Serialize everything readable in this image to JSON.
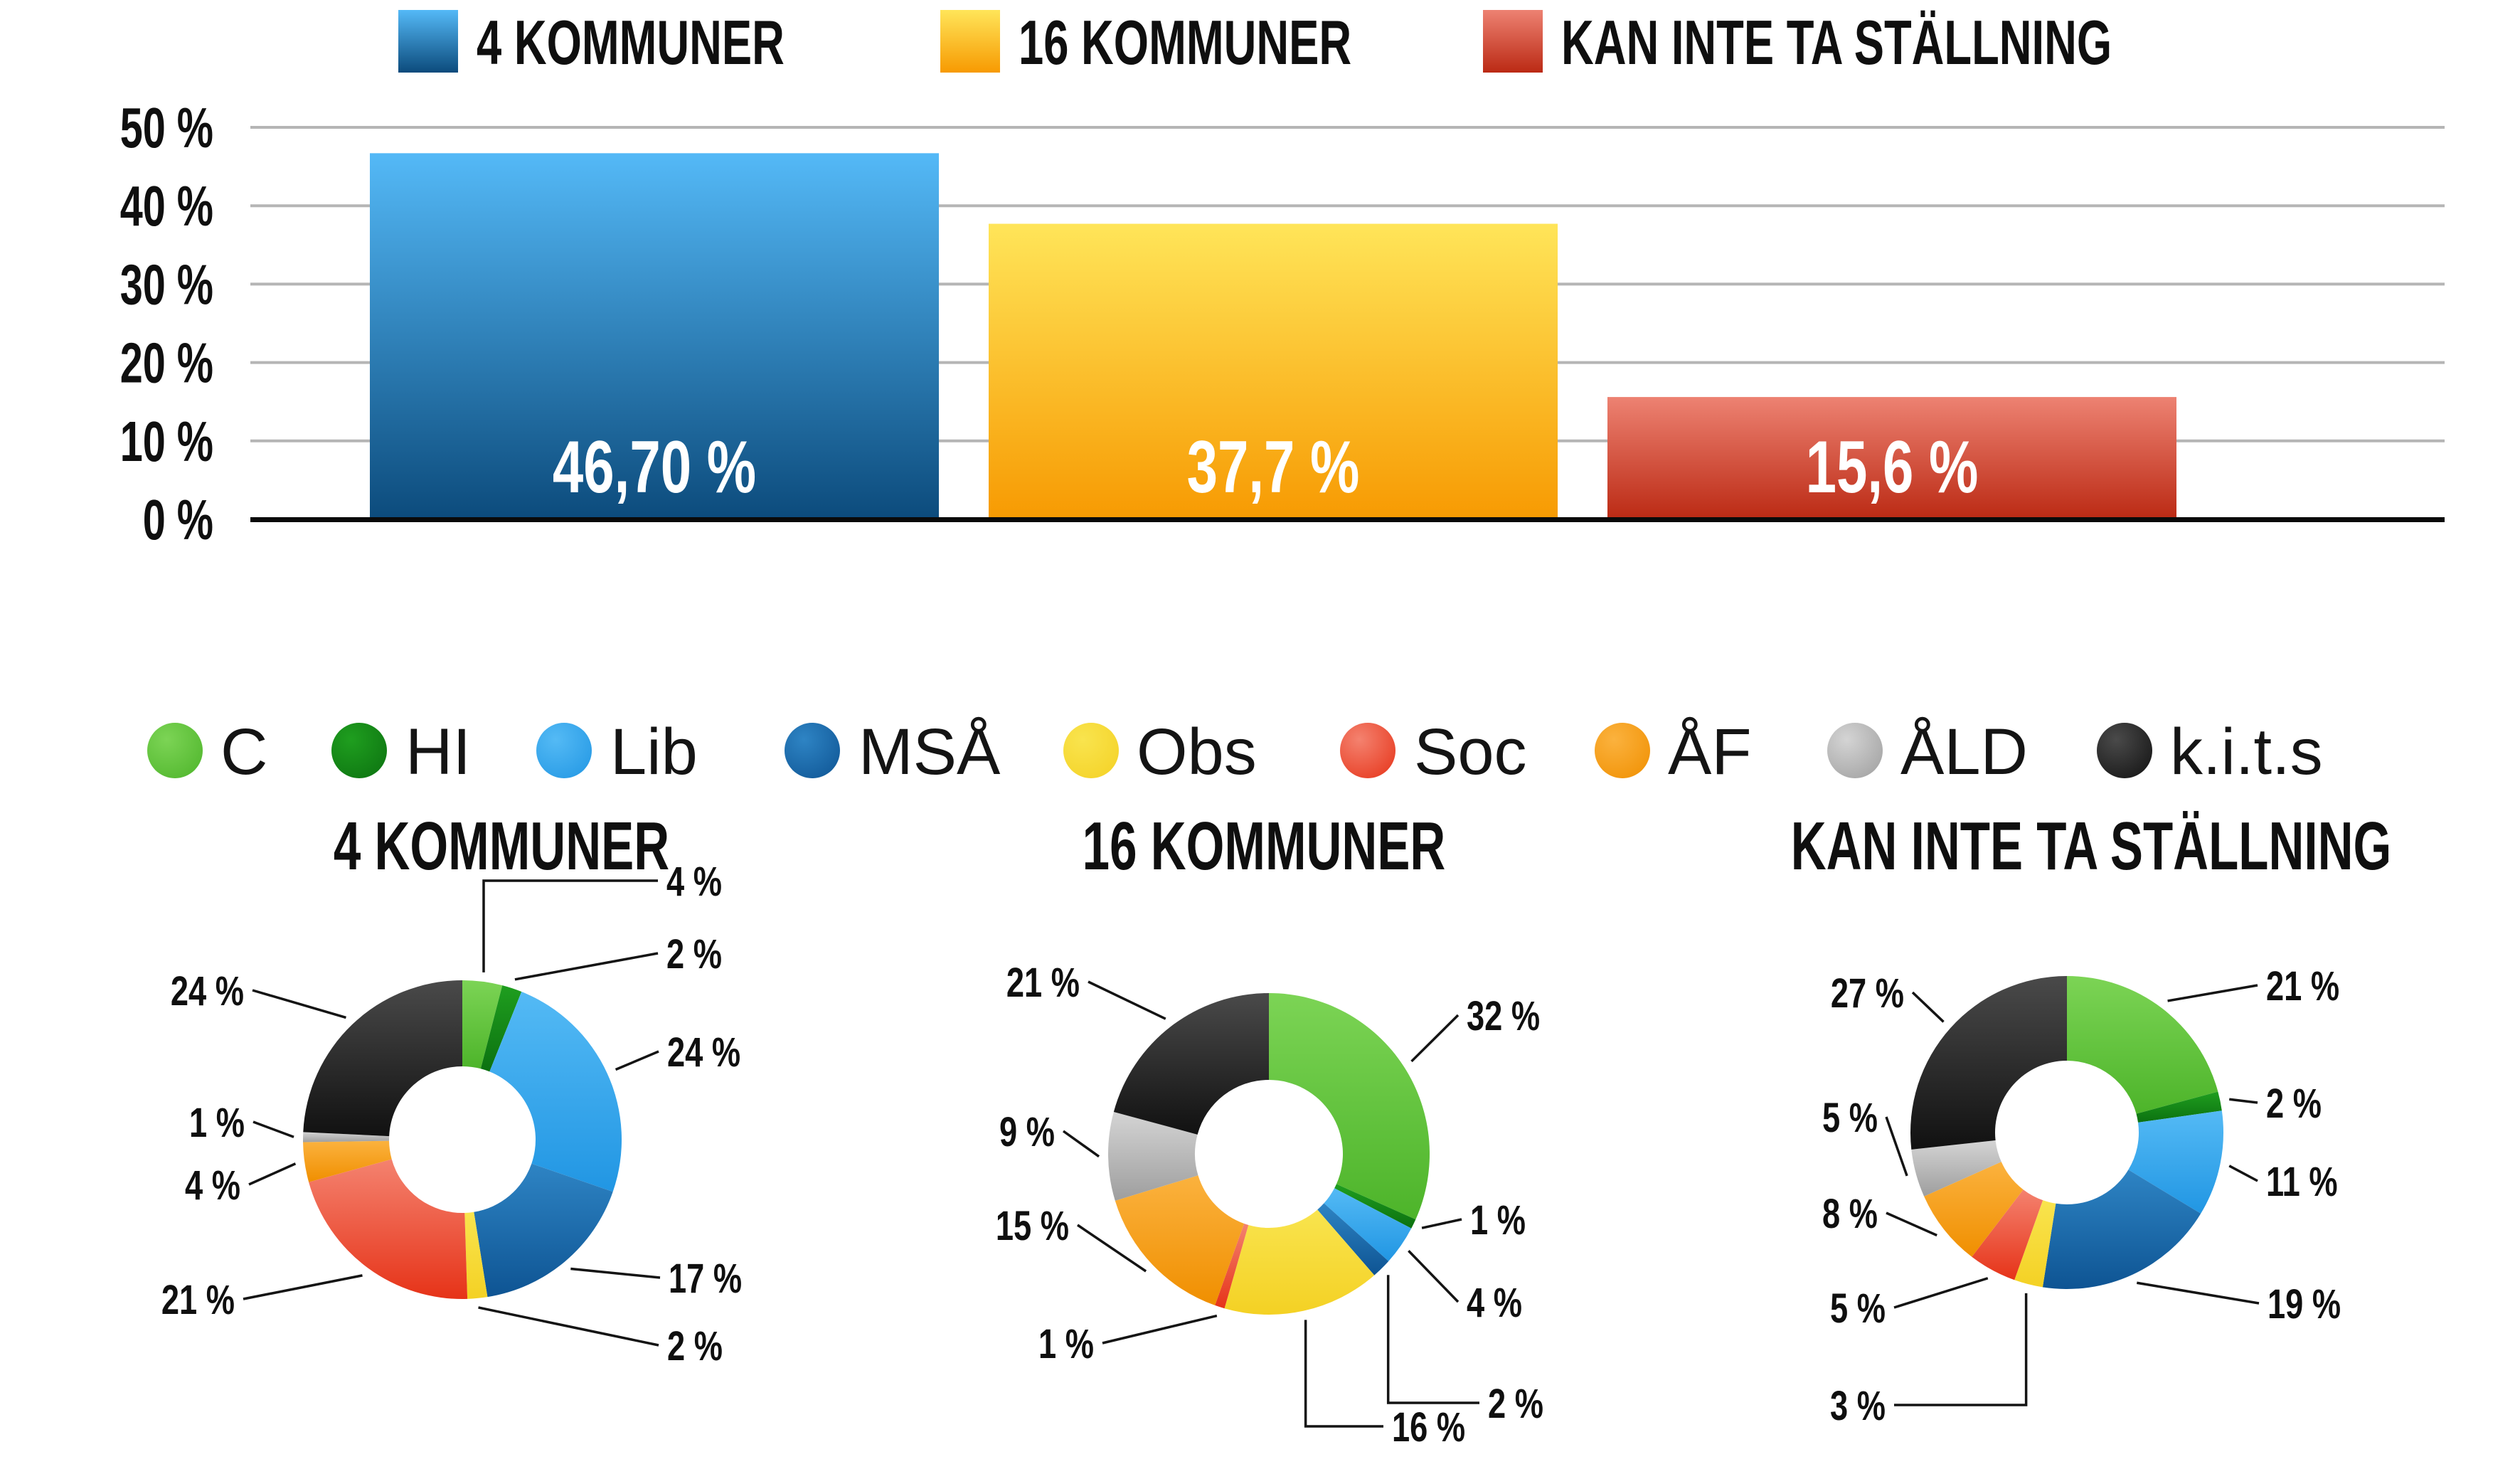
{
  "colors": {
    "background": "#FFFFFF",
    "text": "#0F0F0F",
    "grid": "#B5B5B5",
    "axis": "#0A0A0A",
    "leader": "#141414",
    "bar_value_text": "#FFFFFF"
  },
  "parties": [
    {
      "label": "C",
      "light": "#7CD455",
      "dark": "#4DB42A"
    },
    {
      "label": "HI",
      "light": "#1F9E1F",
      "dark": "#0C7110"
    },
    {
      "label": "Lib",
      "light": "#54BAF5",
      "dark": "#2196E3"
    },
    {
      "label": "MSÅ",
      "light": "#2E84C4",
      "dark": "#0E5493"
    },
    {
      "label": "Obs",
      "light": "#F9E44E",
      "dark": "#F4D124"
    },
    {
      "label": "Soc",
      "light": "#F4826F",
      "dark": "#E63318"
    },
    {
      "label": "ÅF",
      "light": "#FBB23E",
      "dark": "#F08F00"
    },
    {
      "label": "ÅLD",
      "light": "#D4D4D4",
      "dark": "#9E9E9E"
    },
    {
      "label": "k.i.t.s",
      "light": "#4A4A4A",
      "dark": "#111111"
    }
  ],
  "chart_data": [
    {
      "type": "bar",
      "title": "",
      "categories": [
        "4 KOMMUNER",
        "16 KOMMUNER",
        "KAN INTE TA STÄLLNING"
      ],
      "values": [
        46.7,
        37.7,
        15.6
      ],
      "value_labels": [
        "46,70 %",
        "37,7 %",
        "15,6 %"
      ],
      "bar_gradients": [
        [
          "#54B9F7",
          "#0C4B7C"
        ],
        [
          "#FFE559",
          "#F79A02"
        ],
        [
          "#ED8272",
          "#BB2A14"
        ]
      ],
      "ylim": [
        0,
        50
      ],
      "ytick_values": [
        0,
        10,
        20,
        30,
        40,
        50
      ],
      "ytick_labels": [
        "0 %",
        "10 %",
        "20 %",
        "30 %",
        "40 %",
        "50 %"
      ],
      "grid": true,
      "legend_position": "top"
    },
    {
      "type": "donut",
      "title": "4 KOMMUNER",
      "categories": [
        "C",
        "HI",
        "Lib",
        "MSÅ",
        "Obs",
        "Soc",
        "ÅF",
        "ÅLD",
        "k.i.t.s"
      ],
      "values": [
        4,
        2,
        24,
        17,
        2,
        21,
        4,
        1,
        24
      ],
      "value_labels": [
        "4 %",
        "2 %",
        "24 %",
        "17 %",
        "2 %",
        "21 %",
        "4 %",
        "1 %",
        "24 %"
      ]
    },
    {
      "type": "donut",
      "title": "16 KOMMUNER",
      "categories": [
        "C",
        "HI",
        "Lib",
        "MSÅ",
        "Obs",
        "Soc",
        "ÅF",
        "ÅLD",
        "k.i.t.s"
      ],
      "values": [
        32,
        1,
        4,
        2,
        16,
        1,
        15,
        9,
        21
      ],
      "value_labels": [
        "32 %",
        "1 %",
        "4 %",
        "2 %",
        "16 %",
        "1 %",
        "15 %",
        "9 %",
        "21 %"
      ]
    },
    {
      "type": "donut",
      "title": "KAN INTE TA STÄLLNING",
      "categories": [
        "C",
        "HI",
        "Lib",
        "MSÅ",
        "Obs",
        "Soc",
        "ÅF",
        "ÅLD",
        "k.i.t.s"
      ],
      "values": [
        21,
        2,
        11,
        19,
        3,
        5,
        8,
        5,
        27
      ],
      "value_labels": [
        "21 %",
        "2 %",
        "11 %",
        "19 %",
        "3 %",
        "5 %",
        "8 %",
        "5 %",
        "27 %"
      ]
    }
  ]
}
